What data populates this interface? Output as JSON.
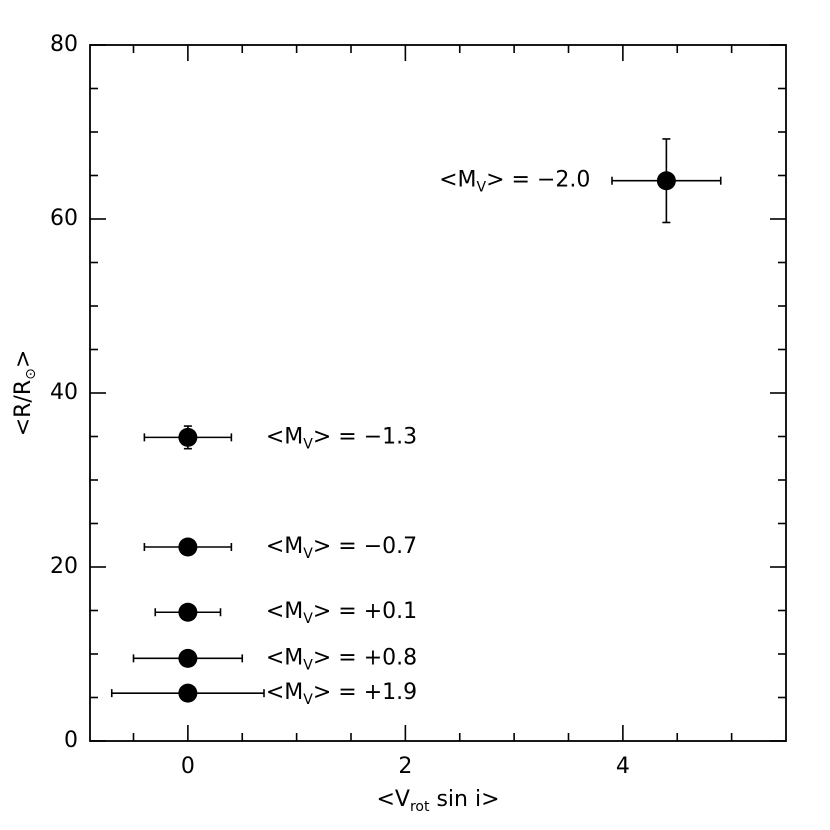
{
  "chart_data": {
    "type": "scatter",
    "x_label": {
      "main": "<V",
      "sub": "rot",
      "tail": " sin i>"
    },
    "y_label": {
      "main": "<R/R",
      "sub": "⊙",
      "tail": ">"
    },
    "xlim": [
      -0.9,
      5.5
    ],
    "ylim": [
      0,
      80
    ],
    "xticks": [
      0,
      2,
      4
    ],
    "yticks": [
      0,
      20,
      40,
      60,
      80
    ],
    "xminor_ticks": [
      -0.5,
      0.5,
      1,
      1.5,
      2.5,
      3,
      3.5,
      4.5,
      5
    ],
    "yminor_ticks": [
      5,
      10,
      15,
      25,
      30,
      35,
      45,
      50,
      55,
      65,
      70,
      75
    ],
    "color": "#000000",
    "x": [
      4.4,
      0,
      0,
      0,
      0,
      0
    ],
    "y": [
      64.4,
      34.9,
      22.3,
      14.8,
      9.5,
      5.5
    ],
    "xerr": [
      0.5,
      0.4,
      0.4,
      0.3,
      0.5,
      0.7
    ],
    "yerr": [
      4.8,
      1.3,
      null,
      null,
      null,
      null
    ],
    "point_labels": [
      {
        "main": "<M",
        "sub": "V",
        "tail": "> = −2.0"
      },
      {
        "main": "<M",
        "sub": "V",
        "tail": "> = −1.3"
      },
      {
        "main": "<M",
        "sub": "V",
        "tail": "> = −0.7"
      },
      {
        "main": "<M",
        "sub": "V",
        "tail": "> = +0.1"
      },
      {
        "main": "<M",
        "sub": "V",
        "tail": "> = +0.8"
      },
      {
        "main": "<M",
        "sub": "V",
        "tail": "> = +1.9"
      }
    ]
  }
}
